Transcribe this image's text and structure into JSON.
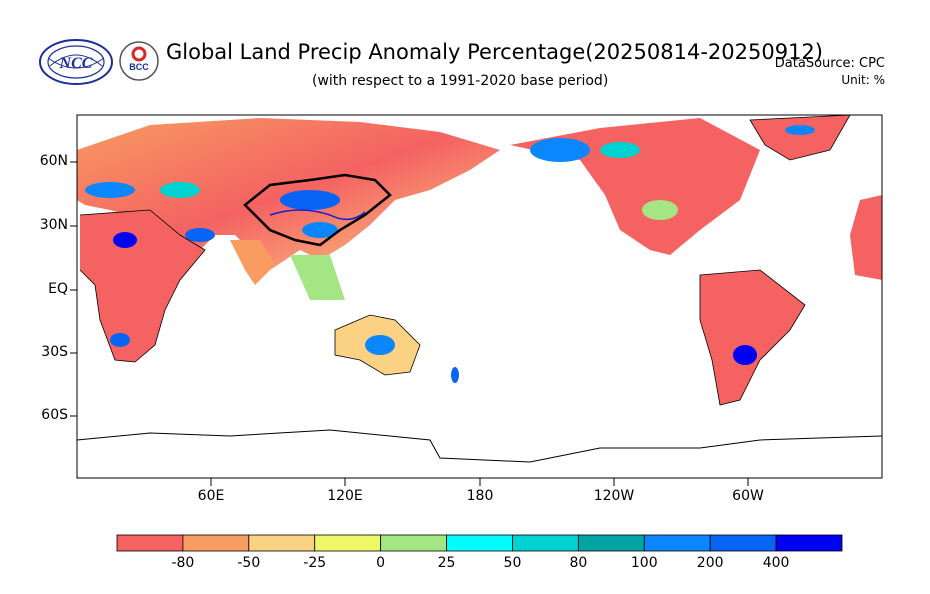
{
  "header": {
    "logo_left_text": "NCC",
    "logo_right_text": "BCC",
    "title": "Global Land Precip Anomaly Percentage(20250814-20250912)",
    "subtitle": "(with respect to a 1991-2020 base period)",
    "datasource": "DataSource:  CPC",
    "unit": "Unit:  %"
  },
  "map": {
    "projection": "cylindrical equidistant, 180 centered",
    "lat_labels": [
      "60N",
      "30N",
      "EQ",
      "30S",
      "60S"
    ],
    "lon_labels": [
      "60E",
      "120E",
      "180",
      "120W",
      "60W"
    ]
  },
  "colorbar": {
    "colors": [
      "#f46262",
      "#f89c62",
      "#fbd184",
      "#eef766",
      "#a4e683",
      "#00fcfc",
      "#00d1d1",
      "#00a4a4",
      "#0a87ff",
      "#0764f5",
      "#0000f5"
    ],
    "labels": [
      "-80",
      "-50",
      "-25",
      "0",
      "25",
      "50",
      "80",
      "100",
      "200",
      "400"
    ]
  }
}
